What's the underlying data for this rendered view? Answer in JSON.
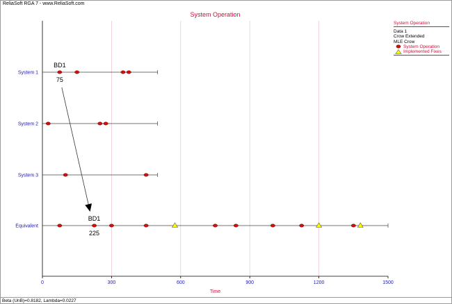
{
  "app_caption": "ReliaSoft RGA 7 - www.ReliaSoft.com",
  "footer_caption": "Beta (UnB)=0.8182, Lambda=0.0227",
  "colors": {
    "title": "#d0103a",
    "row_label": "#1a1aa8",
    "failure_marker": "#cc1111",
    "fix_marker": "#ffff00",
    "grid": "#f0c8d0"
  },
  "legend": {
    "title": "System Operation",
    "lines": [
      "Data 1",
      "Crow Extended",
      "MLE Crow"
    ],
    "series": [
      {
        "label": "System Operation",
        "icon": "red-ellipse-marker"
      },
      {
        "label": "Implemented Fixes",
        "icon": "yellow-triangle-marker"
      }
    ]
  },
  "chart_data": {
    "type": "scatter",
    "title": "System Operation",
    "xlabel": "Time",
    "ylabel": "",
    "xlim": [
      0,
      1500
    ],
    "xticks": [
      0,
      300,
      600,
      900,
      1200,
      1500
    ],
    "grid": "vertical",
    "rows": [
      {
        "label": "System 1",
        "end": 500,
        "failures": [
          75,
          150,
          350,
          375
        ],
        "fixes": []
      },
      {
        "label": "System 2",
        "end": 500,
        "failures": [
          25,
          250,
          275
        ],
        "fixes": []
      },
      {
        "label": "System 3",
        "end": 500,
        "failures": [
          100,
          450
        ],
        "fixes": []
      },
      {
        "label": "Equivalent",
        "end": 1500,
        "failures": [
          75,
          225,
          300,
          450,
          750,
          840,
          1000,
          1125,
          1350
        ],
        "fixes": [
          575,
          1200,
          1380
        ]
      }
    ],
    "annotations": [
      {
        "label": "BD1",
        "value": "75",
        "row": 0,
        "x": 75
      },
      {
        "label": "BD1",
        "value": "225",
        "row": 3,
        "x": 225
      }
    ]
  }
}
